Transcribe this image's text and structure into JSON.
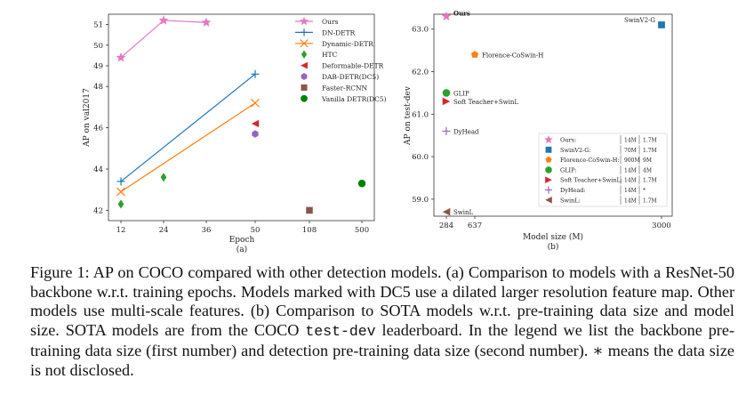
{
  "chart_data": [
    {
      "type": "line",
      "sublabel": "(a)",
      "xlabel": "Epoch",
      "ylabel": "AP on val2017",
      "xticks": [
        "12",
        "24",
        "36",
        "50",
        "108",
        "500"
      ],
      "ylim": [
        41.5,
        51.5
      ],
      "ytick_values": [
        42,
        44,
        46,
        48,
        49,
        50,
        51
      ],
      "ytick_labels": [
        "42",
        "44",
        "46",
        "48",
        "49",
        "50",
        "51"
      ],
      "legend_position": "top-right",
      "series": [
        {
          "name": "Ours",
          "color": "#e377c2",
          "marker": "star",
          "line": true,
          "points": [
            {
              "x": "12",
              "y": 49.4
            },
            {
              "x": "24",
              "y": 51.2
            },
            {
              "x": "36",
              "y": 51.1
            }
          ]
        },
        {
          "name": "DN-DETR",
          "color": "#1f77b4",
          "marker": "plus",
          "line": true,
          "points": [
            {
              "x": "12",
              "y": 43.4
            },
            {
              "x": "50",
              "y": 48.6
            }
          ]
        },
        {
          "name": "Dynamic-DETR",
          "color": "#ff7f0e",
          "marker": "x",
          "line": true,
          "points": [
            {
              "x": "12",
              "y": 42.9
            },
            {
              "x": "50",
              "y": 47.2
            }
          ]
        },
        {
          "name": "HTC",
          "color": "#2ca02c",
          "marker": "diamond",
          "line": false,
          "points": [
            {
              "x": "12",
              "y": 42.3
            },
            {
              "x": "24",
              "y": 43.6
            }
          ]
        },
        {
          "name": "Deformable-DETR",
          "color": "#d62728",
          "marker": "triangle-left",
          "line": false,
          "points": [
            {
              "x": "50",
              "y": 46.2
            }
          ]
        },
        {
          "name": "DAB-DETR(DC5)",
          "color": "#9467bd",
          "marker": "hexagon",
          "line": false,
          "points": [
            {
              "x": "50",
              "y": 45.7
            }
          ]
        },
        {
          "name": "Faster-RCNN",
          "color": "#8c564b",
          "marker": "square",
          "line": false,
          "points": [
            {
              "x": "108",
              "y": 42.0
            }
          ]
        },
        {
          "name": "Vanilla DETR(DC5)",
          "color": "#008000",
          "marker": "circle",
          "line": false,
          "points": [
            {
              "x": "500",
              "y": 43.3
            }
          ]
        }
      ]
    },
    {
      "type": "scatter",
      "sublabel": "(b)",
      "xlabel": "Model size (M)",
      "ylabel": "AP on test-dev",
      "xticks": [
        "284",
        "637",
        "3000"
      ],
      "ylim": [
        58.6,
        63.35
      ],
      "ytick_values": [
        59.0,
        60.0,
        61.0,
        62.0,
        63.0
      ],
      "ytick_labels": [
        "59.0",
        "60.0",
        "61.0",
        "62.0",
        "63.0"
      ],
      "legend_position": "lower-right",
      "points": [
        {
          "name": "Ours",
          "label": "Ours",
          "x": 284,
          "y": 63.3,
          "color": "#e377c2",
          "marker": "star",
          "backbone_data": "14M",
          "detection_data": "1.7M"
        },
        {
          "name": "SwinV2-G",
          "label": "SwinV2-G",
          "x": 3000,
          "y": 63.1,
          "color": "#1f77b4",
          "marker": "square",
          "backbone_data": "70M",
          "detection_data": "1.7M"
        },
        {
          "name": "Florence-CoSwin-H",
          "label": "Florence-CoSwin-H",
          "x": 637,
          "y": 62.4,
          "color": "#ff7f0e",
          "marker": "pentagon",
          "backbone_data": "900M",
          "detection_data": "9M"
        },
        {
          "name": "GLIP",
          "label": "GLIP",
          "x": 284,
          "y": 61.5,
          "color": "#2ca02c",
          "marker": "circle",
          "backbone_data": "14M",
          "detection_data": "4M"
        },
        {
          "name": "Soft Teacher+SwinL",
          "label": "Soft Teacher+SwinL",
          "x": 284,
          "y": 61.3,
          "color": "#d62728",
          "marker": "triangle-right",
          "backbone_data": "14M",
          "detection_data": "1.7M"
        },
        {
          "name": "DyHead",
          "label": "DyHead",
          "x": 284,
          "y": 60.6,
          "color": "#9467bd",
          "marker": "plus",
          "backbone_data": "14M",
          "detection_data": "*"
        },
        {
          "name": "SwinL",
          "label": "SwinL",
          "x": 284,
          "y": 58.7,
          "color": "#8c564b",
          "marker": "triangle-left",
          "backbone_data": "14M",
          "detection_data": "1.7M"
        }
      ],
      "legend_entries": [
        "Ours:",
        "SwinV2-G:",
        "Florence-CoSwin-H:",
        "GLIP:",
        "Soft Teacher+SwinL:",
        "DyHead:",
        "SwinL:"
      ]
    }
  ],
  "caption": {
    "part1": "Figure 1: AP on COCO compared with other detection models. (a) Comparison to models with a ResNet-50 backbone w.r.t. training epochs. Models marked with DC5 use a dilated larger resolution feature map. Other models use multi-scale features. (b) Comparison to SOTA models w.r.t. pre-training data size and model size. SOTA models are from the COCO ",
    "code": "test-dev",
    "part2": " leaderboard. In the legend we list the backbone pre-training data size (first number) and detection pre-training data size (second number). ∗ means the data size is not disclosed."
  }
}
